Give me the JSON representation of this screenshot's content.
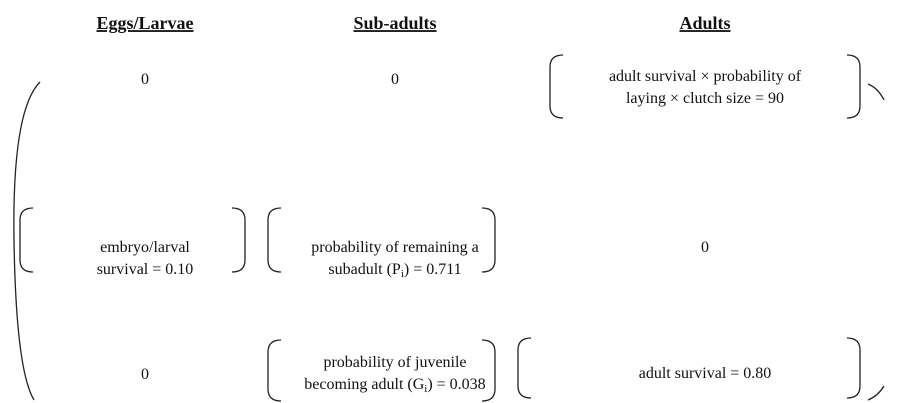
{
  "headers": [
    "Eggs/Larvae",
    "Sub-adults",
    "Adults"
  ],
  "matrix": {
    "rows": [
      [
        {
          "lines": [
            [
              {
                "text": "0"
              }
            ]
          ]
        },
        {
          "lines": [
            [
              {
                "text": "0"
              }
            ]
          ]
        },
        {
          "lines": [
            [
              {
                "text": "adult survival × probability of"
              }
            ],
            [
              {
                "text": "laying × clutch size = 90"
              }
            ]
          ],
          "bracketed": true
        }
      ],
      [
        {
          "lines": [
            [
              {
                "text": "embryo/larval"
              }
            ],
            [
              {
                "text": "survival = 0.10"
              }
            ]
          ],
          "bracketed": true
        },
        {
          "lines": [
            [
              {
                "text": "probability of remaining a"
              }
            ],
            [
              {
                "text": "subadult (P"
              },
              {
                "text": "i",
                "subscript": true
              },
              {
                "text": ") = 0.711"
              }
            ]
          ],
          "bracketed": true
        },
        {
          "lines": [
            [
              {
                "text": "0"
              }
            ]
          ]
        }
      ],
      [
        {
          "lines": [
            [
              {
                "text": "0"
              }
            ]
          ]
        },
        {
          "lines": [
            [
              {
                "text": "probability of juvenile"
              }
            ],
            [
              {
                "text": "becoming adult (G"
              },
              {
                "text": "i",
                "subscript": true
              },
              {
                "text": ") = 0.038"
              }
            ]
          ],
          "bracketed": true
        },
        {
          "lines": [
            [
              {
                "text": "adult survival = 0.80"
              }
            ]
          ],
          "bracketed": true
        }
      ]
    ]
  }
}
